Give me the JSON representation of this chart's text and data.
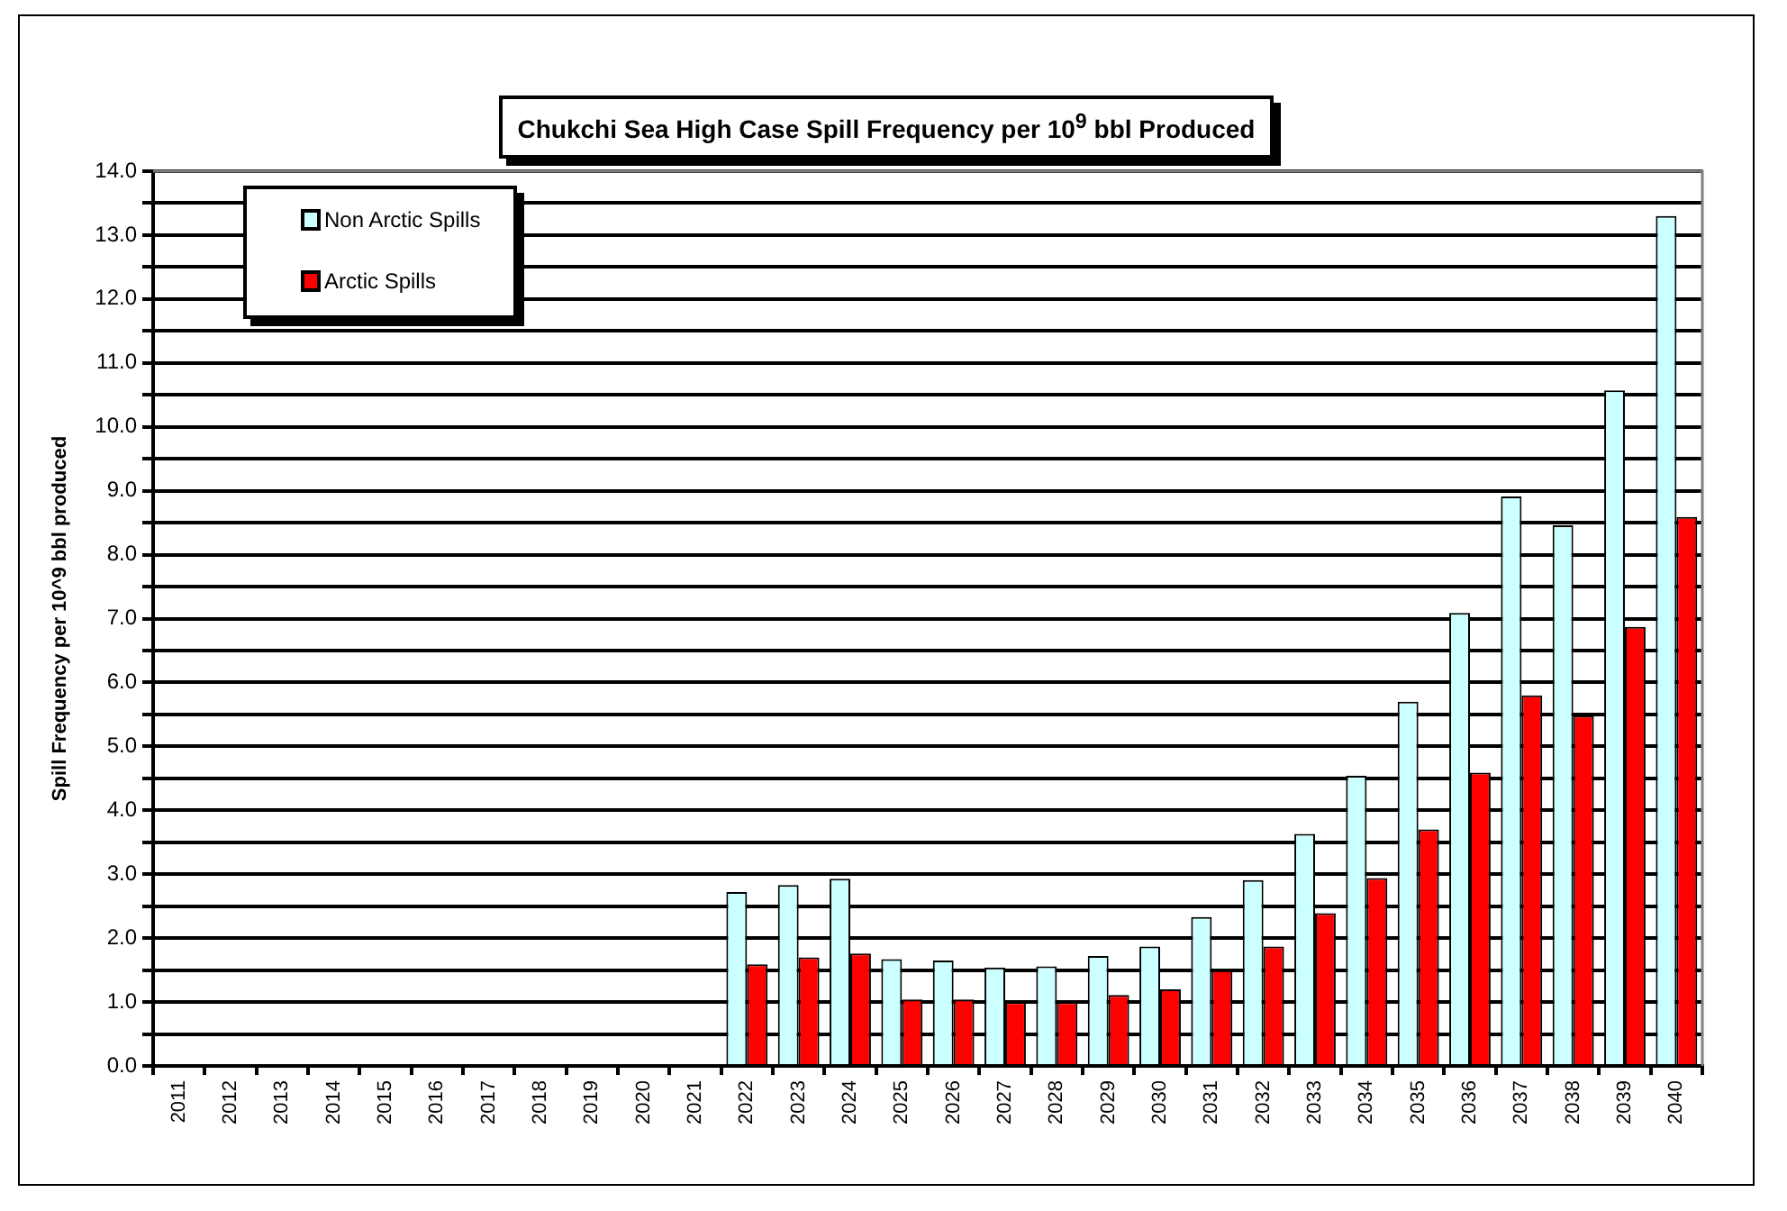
{
  "chart_data": {
    "type": "bar",
    "title": "Chukchi Sea High Case Spill Frequency per 10$^{9}$ bbl Produced",
    "ylabel": "Spill Frequency per 10^9 bbl produced",
    "categories": [
      "2011",
      "2012",
      "2013",
      "2014",
      "2015",
      "2016",
      "2017",
      "2018",
      "2019",
      "2020",
      "2021",
      "2022",
      "2023",
      "2024",
      "2025",
      "2026",
      "2027",
      "2028",
      "2029",
      "2030",
      "2031",
      "2032",
      "2033",
      "2034",
      "2035",
      "2036",
      "2037",
      "2038",
      "2039",
      "2040"
    ],
    "series": [
      {
        "name": "Non Arctic Spills",
        "color": "#ccffff",
        "values": [
          null,
          null,
          null,
          null,
          null,
          null,
          null,
          null,
          null,
          null,
          null,
          2.72,
          2.83,
          2.93,
          1.67,
          1.65,
          1.54,
          1.56,
          1.72,
          1.87,
          2.33,
          2.91,
          3.63,
          4.54,
          5.7,
          7.09,
          8.91,
          8.46,
          10.57,
          13.3
        ]
      },
      {
        "name": "Arctic Spills",
        "color": "#ff0000",
        "values": [
          null,
          null,
          null,
          null,
          null,
          null,
          null,
          null,
          null,
          null,
          null,
          1.59,
          1.7,
          1.76,
          1.04,
          1.04,
          1.0,
          1.0,
          1.11,
          1.2,
          1.5,
          1.87,
          2.39,
          2.94,
          3.7,
          4.59,
          5.8,
          5.48,
          6.87,
          8.59
        ]
      }
    ],
    "ylim": [
      0,
      14
    ],
    "yticks": [
      {
        "value": 0,
        "label": "0.0"
      },
      {
        "value": 0.5,
        "label": null
      },
      {
        "value": 1,
        "label": "1.0"
      },
      {
        "value": 1.5,
        "label": null
      },
      {
        "value": 2,
        "label": "2.0"
      },
      {
        "value": 2.5,
        "label": null
      },
      {
        "value": 3,
        "label": "3.0"
      },
      {
        "value": 3.5,
        "label": null
      },
      {
        "value": 4,
        "label": "4.0"
      },
      {
        "value": 4.5,
        "label": null
      },
      {
        "value": 5,
        "label": "5.0"
      },
      {
        "value": 5.5,
        "label": null
      },
      {
        "value": 6,
        "label": "6.0"
      },
      {
        "value": 6.5,
        "label": null
      },
      {
        "value": 7,
        "label": "7.0"
      },
      {
        "value": 7.5,
        "label": null
      },
      {
        "value": 8,
        "label": "8.0"
      },
      {
        "value": 8.5,
        "label": null
      },
      {
        "value": 9,
        "label": "9.0"
      },
      {
        "value": 9.5,
        "label": null
      },
      {
        "value": 10,
        "label": "10.0"
      },
      {
        "value": 10.5,
        "label": null
      },
      {
        "value": 11,
        "label": "11.0"
      },
      {
        "value": 11.5,
        "label": null
      },
      {
        "value": 12,
        "label": "12.0"
      },
      {
        "value": 12.5,
        "label": null
      },
      {
        "value": 13,
        "label": "13.0"
      },
      {
        "value": 13.5,
        "label": null
      },
      {
        "value": 14,
        "label": "14.0"
      }
    ],
    "grid": "y",
    "legend": "top left"
  }
}
